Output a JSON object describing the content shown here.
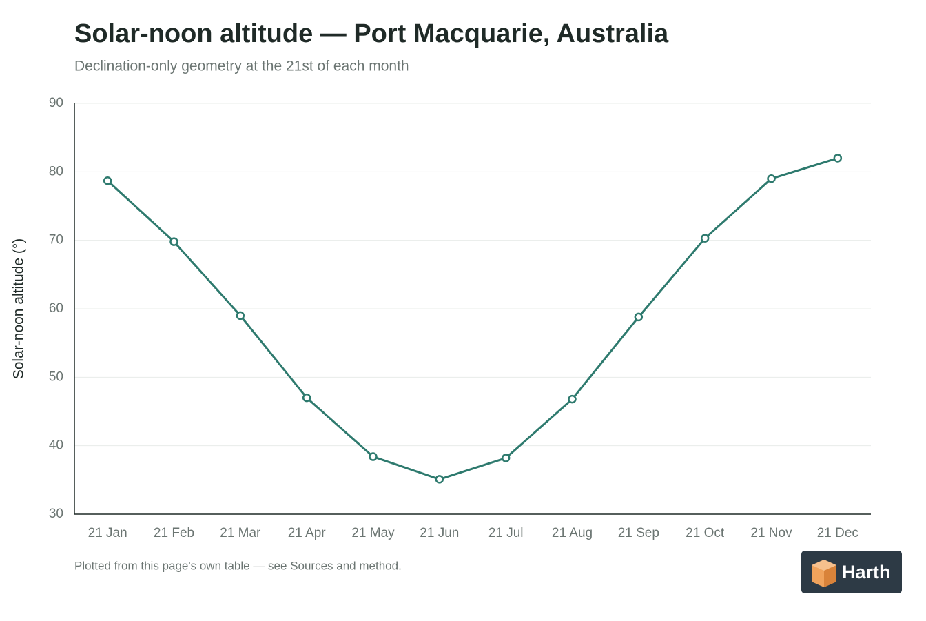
{
  "chart_data": {
    "type": "line",
    "title": "Solar-noon altitude — Port Macquarie, Australia",
    "subtitle": "Declination-only geometry at the 21st of each month",
    "y_label": "Solar-noon altitude (°)",
    "categories": [
      "21 Jan",
      "21 Feb",
      "21 Mar",
      "21 Apr",
      "21 May",
      "21 Jun",
      "21 Jul",
      "21 Aug",
      "21 Sep",
      "21 Oct",
      "21 Nov",
      "21 Dec"
    ],
    "series": [
      {
        "name": "Solar-noon altitude",
        "color": "#2e7a6e",
        "values": [
          78.7,
          69.8,
          59.0,
          47.0,
          38.4,
          35.1,
          38.2,
          46.8,
          58.8,
          70.3,
          79.0,
          82.0
        ]
      }
    ],
    "ylim": [
      30,
      90
    ],
    "yticks": [
      30,
      40,
      50,
      60,
      70,
      80,
      90
    ],
    "grid": true,
    "footnote": "Plotted from this page's own table — see Sources and method.",
    "brand": "Harth"
  }
}
